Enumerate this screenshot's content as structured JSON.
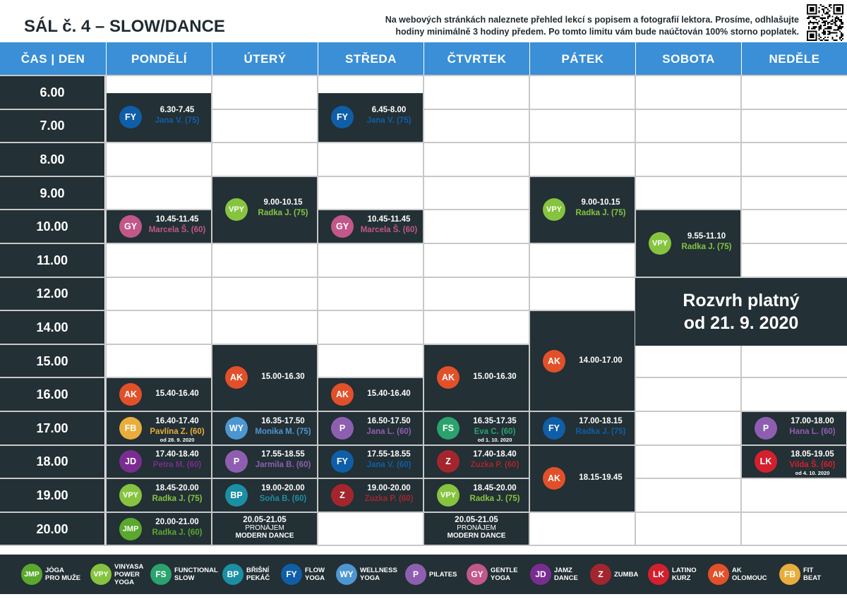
{
  "title": "SÁL č. 4 – SLOW/DANCE",
  "notice": {
    "line1": "Na webových stránkách naleznete přehled lekcí s popisem a fotografií lektora. Prosíme, odhlašujte",
    "line2": "hodiny minimálně 3 hodiny předem. Po tomto limitu vám bude naúčtován 100% storno poplatek."
  },
  "colors": {
    "header": "#3a8fd6",
    "dark": "#233035",
    "JMP": "#5aa82e",
    "VPY": "#86c440",
    "FS": "#2aa36d",
    "BP": "#1b8fa3",
    "FY": "#0f5ea8",
    "WY": "#4d96d1",
    "P": "#8e5fb0",
    "GY": "#c2578a",
    "JD": "#7a2d91",
    "Z": "#a3262e",
    "LK": "#d4202e",
    "AK": "#e2502a",
    "FB": "#e8ad3c"
  },
  "header": [
    "ČAS | DEN",
    "PONDĚLÍ",
    "ÚTERÝ",
    "STŘEDA",
    "ČTVRTEK",
    "PÁTEK",
    "SOBOTA",
    "NEDĚLE"
  ],
  "times": [
    "6.00",
    "7.00",
    "8.00",
    "9.00",
    "10.00",
    "11.00",
    "12.00",
    "14.00",
    "15.00",
    "16.00",
    "17.00",
    "18.00",
    "19.00",
    "20.00"
  ],
  "lessons": [
    {
      "code": "FY",
      "time": "6.30-7.45",
      "name": "Jana V. (75)"
    },
    {
      "code": "FY",
      "time": "6.45-8.00",
      "name": "Jana V. (75)"
    },
    {
      "code": "VPY",
      "time": "9.00-10.15",
      "name": "Radka J. (75)"
    },
    {
      "code": "VPY",
      "time": "9.00-10.15",
      "name": "Radka J. (75)"
    },
    {
      "code": "GY",
      "time": "10.45-11.45",
      "name": "Marcela Š. (60)"
    },
    {
      "code": "GY",
      "time": "10.45-11.45",
      "name": "Marcela Š. (60)"
    },
    {
      "code": "VPY",
      "time": "9.55-11.10",
      "name": "Radka J. (75)"
    },
    {
      "code": "AK",
      "time": "15.00-16.30",
      "name": ""
    },
    {
      "code": "AK",
      "time": "15.00-16.30",
      "name": ""
    },
    {
      "code": "AK",
      "time": "14.00-17.00",
      "name": ""
    },
    {
      "code": "AK",
      "time": "15.40-16.40",
      "name": ""
    },
    {
      "code": "AK",
      "time": "15.40-16.40",
      "name": ""
    },
    {
      "code": "FB",
      "time": "16.40-17.40",
      "name": "Pavlína Z. (60)",
      "note": "od 28. 9. 2020"
    },
    {
      "code": "WY",
      "time": "16.35-17.50",
      "name": "Monika M. (75)"
    },
    {
      "code": "P",
      "time": "16.50-17.50",
      "name": "Jana L. (60)"
    },
    {
      "code": "FS",
      "time": "16.35-17.35",
      "name": "Eva C. (60)",
      "note": "od 1. 10. 2020"
    },
    {
      "code": "FY",
      "time": "17.00-18.15",
      "name": "Radka J. (75)"
    },
    {
      "code": "P",
      "time": "17.00-18.00",
      "name": "Hana L. (60)"
    },
    {
      "code": "JD",
      "time": "17.40-18.40",
      "name": "Petra M. (60)"
    },
    {
      "code": "P",
      "time": "17.55-18.55",
      "name": "Jarmila B. (60)"
    },
    {
      "code": "FY",
      "time": "17.55-18.55",
      "name": "Jana V. (60)"
    },
    {
      "code": "Z",
      "time": "17.40-18.40",
      "name": "Zuzka P. (60)"
    },
    {
      "code": "AK",
      "time": "18.15-19.45",
      "name": ""
    },
    {
      "code": "LK",
      "time": "18.05-19.05",
      "name": "Vilda Š. (60)",
      "note": "od 4. 10. 2020"
    },
    {
      "code": "VPY",
      "time": "18.45-20.00",
      "name": "Radka J. (75)"
    },
    {
      "code": "BP",
      "time": "19.00-20.00",
      "name": "Soňa B. (60)"
    },
    {
      "code": "Z",
      "time": "19.00-20.00",
      "name": "Zuzka P. (60)"
    },
    {
      "code": "VPY",
      "time": "18.45-20.00",
      "name": "Radka J. (75)"
    },
    {
      "code": "JMP",
      "time": "20.00-21.00",
      "name": "Radka J. (60)"
    }
  ],
  "rentals": [
    {
      "time": "20.05-21.05",
      "label": "PRONÁJEM",
      "title": "MODERN DANCE"
    },
    {
      "time": "20.05-21.05",
      "label": "PRONÁJEM",
      "title": "MODERN DANCE"
    }
  ],
  "validity": {
    "line1": "Rozvrh platný",
    "line2": "od 21. 9. 2020"
  },
  "legend": [
    {
      "code": "JMP",
      "label": "JÓGA\nPRO MUŽE"
    },
    {
      "code": "VPY",
      "label": "VINYASA\nPOWER\nYOGA"
    },
    {
      "code": "FS",
      "label": "FUNCTIONAL\nSLOW"
    },
    {
      "code": "BP",
      "label": "BŘIŠNÍ\nPEKÁČ"
    },
    {
      "code": "FY",
      "label": "FLOW\nYOGA"
    },
    {
      "code": "WY",
      "label": "WELLNESS\nYOGA"
    },
    {
      "code": "P",
      "label": "PILATES"
    },
    {
      "code": "GY",
      "label": "GENTLE\nYOGA"
    },
    {
      "code": "JD",
      "label": "JAMZ\nDANCE"
    },
    {
      "code": "Z",
      "label": "ZUMBA"
    },
    {
      "code": "LK",
      "label": "LATINO\nKURZ"
    },
    {
      "code": "AK",
      "label": "AK\nOLOMOUC"
    },
    {
      "code": "FB",
      "label": "FIT\nBEAT"
    }
  ]
}
